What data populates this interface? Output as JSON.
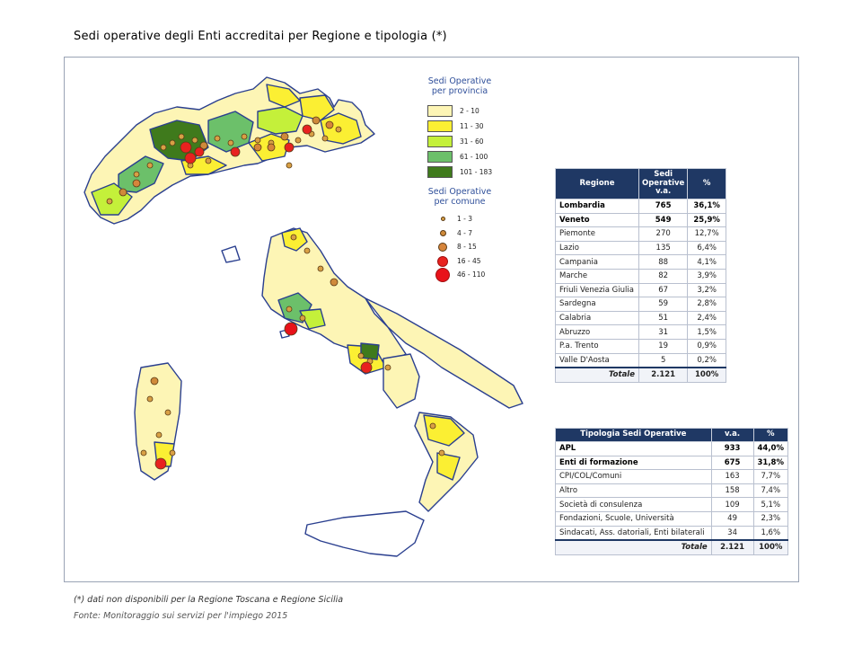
{
  "title": "Sedi operative degli Enti accreditai per Regione e tipologia (*)",
  "legend_province": {
    "title_line1": "Sedi Operative",
    "title_line2": "per provincia",
    "classes": [
      {
        "label": "2 - 10",
        "color": "#fdf5b5"
      },
      {
        "label": "11 - 30",
        "color": "#fbef33"
      },
      {
        "label": "31 - 60",
        "color": "#c4f03a"
      },
      {
        "label": "61 - 100",
        "color": "#6cc06a"
      },
      {
        "label": "101 - 183",
        "color": "#3f7a1c"
      }
    ]
  },
  "legend_comune": {
    "title_line1": "Sedi Operative",
    "title_line2": "per comune",
    "classes": [
      {
        "label": "1 - 3",
        "color": "#d8a045"
      },
      {
        "label": "4 - 7",
        "color": "#cf8a3a"
      },
      {
        "label": "8 - 15",
        "color": "#d6853b"
      },
      {
        "label": "16 - 45",
        "color": "#e8221f"
      },
      {
        "label": "46 - 110",
        "color": "#e8121a"
      }
    ]
  },
  "regions_table": {
    "headers": [
      "Regione",
      "Sedi Operative v.a.",
      "%"
    ],
    "header_col2_line1": "Sedi",
    "header_col2_line2": "Operative",
    "header_col2_line3": "v.a.",
    "rows": [
      {
        "name": "Lombardia",
        "va": "765",
        "pct": "36,1%",
        "bold": true
      },
      {
        "name": "Veneto",
        "va": "549",
        "pct": "25,9%",
        "bold": true
      },
      {
        "name": "Piemonte",
        "va": "270",
        "pct": "12,7%",
        "bold": false
      },
      {
        "name": "Lazio",
        "va": "135",
        "pct": "6,4%",
        "bold": false
      },
      {
        "name": "Campania",
        "va": "88",
        "pct": "4,1%",
        "bold": false
      },
      {
        "name": "Marche",
        "va": "82",
        "pct": "3,9%",
        "bold": false
      },
      {
        "name": "Friuli Venezia Giulia",
        "va": "67",
        "pct": "3,2%",
        "bold": false
      },
      {
        "name": "Sardegna",
        "va": "59",
        "pct": "2,8%",
        "bold": false
      },
      {
        "name": "Calabria",
        "va": "51",
        "pct": "2,4%",
        "bold": false
      },
      {
        "name": "Abruzzo",
        "va": "31",
        "pct": "1,5%",
        "bold": false
      },
      {
        "name": "P.a. Trento",
        "va": "19",
        "pct": "0,9%",
        "bold": false
      },
      {
        "name": "Valle D'Aosta",
        "va": "5",
        "pct": "0,2%",
        "bold": false
      }
    ],
    "total": {
      "label": "Totale",
      "va": "2.121",
      "pct": "100%"
    }
  },
  "types_table": {
    "headers": [
      "Tipologia Sedi Operative",
      "v.a.",
      "%"
    ],
    "rows": [
      {
        "name": "APL",
        "va": "933",
        "pct": "44,0%",
        "bold": true
      },
      {
        "name": "Enti di formazione",
        "va": "675",
        "pct": "31,8%",
        "bold": true
      },
      {
        "name": "CPI/COL/Comuni",
        "va": "163",
        "pct": "7,7%",
        "bold": false
      },
      {
        "name": "Altro",
        "va": "158",
        "pct": "7,4%",
        "bold": false
      },
      {
        "name": "Società di consulenza",
        "va": "109",
        "pct": "5,1%",
        "bold": false
      },
      {
        "name": "Fondazioni, Scuole, Università",
        "va": "49",
        "pct": "2,3%",
        "bold": false
      },
      {
        "name": "Sindacati, Ass. datoriali, Enti bilaterali",
        "va": "34",
        "pct": "1,6%",
        "bold": false
      }
    ],
    "total": {
      "label": "Totale",
      "va": "2.121",
      "pct": "100%"
    }
  },
  "footnote": "(*) dati non disponibili per la Regione Toscana e Regione Sicilia",
  "source": "Fonte: Monitoraggio sui servizi per l'impiego 2015"
}
